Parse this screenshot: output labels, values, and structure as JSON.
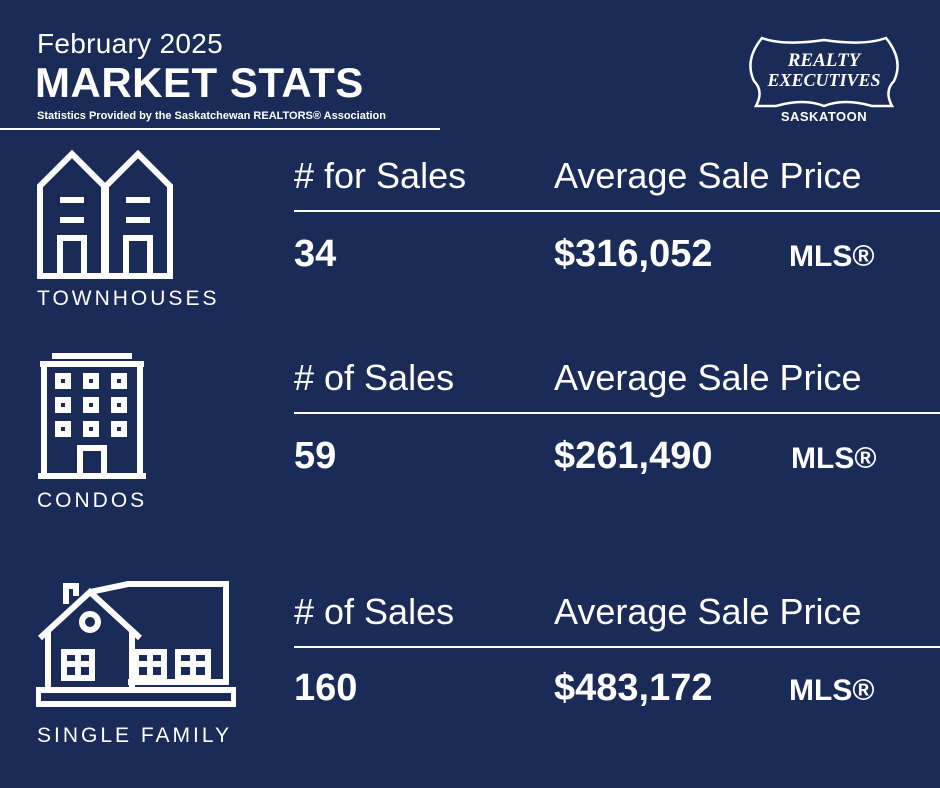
{
  "header": {
    "month": "February 2025",
    "title": "MARKET STATS",
    "credit": "Statistics Provided by the Saskatchewan REALTORS® Association"
  },
  "logo": {
    "line1": "REALTY",
    "line2": "EXECUTIVES",
    "location": "SASKATOON"
  },
  "colors": {
    "background": "#1b2b58",
    "foreground": "#ffffff"
  },
  "sections": [
    {
      "icon": "townhouses-icon",
      "label": "TOWNHOUSES",
      "count_header": "# for Sales",
      "price_header": "Average Sale Price",
      "count": "34",
      "price": "$316,052",
      "mls": "MLS®"
    },
    {
      "icon": "condo-building-icon",
      "label": "CONDOS",
      "count_header": "# of Sales",
      "price_header": "Average Sale Price",
      "count": "59",
      "price": "$261,490",
      "mls": "MLS®"
    },
    {
      "icon": "single-family-house-icon",
      "label": "SINGLE FAMILY",
      "count_header": "# of Sales",
      "price_header": "Average Sale Price",
      "count": "160",
      "price": "$483,172",
      "mls": "MLS®"
    }
  ]
}
